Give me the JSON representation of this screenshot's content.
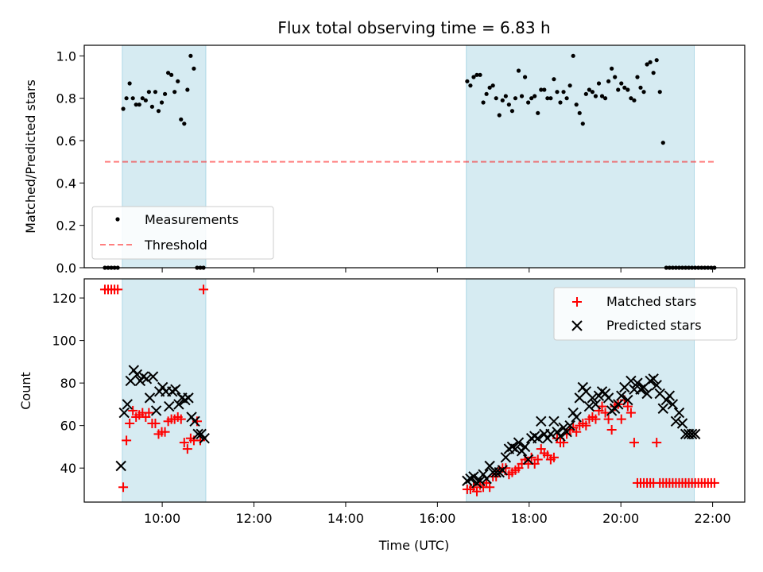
{
  "title": "Flux total observing time = 6.83 h",
  "colors": {
    "span_fill": "#add8e6",
    "measurement": "#000000",
    "threshold": "#ff0000",
    "matched": "#ff0000",
    "predicted": "#000000"
  },
  "chart_data": [
    {
      "type": "scatter",
      "panel": "top",
      "ylabel": "Matched/Predicted stars",
      "xlabel": "",
      "xlim": [
        8.3,
        22.7
      ],
      "ylim": [
        0.0,
        1.05
      ],
      "yticks": [
        0.0,
        0.2,
        0.4,
        0.6,
        0.8,
        1.0
      ],
      "ytick_labels": [
        "0.0",
        "0.2",
        "0.4",
        "0.6",
        "0.8",
        "1.0"
      ],
      "shaded_spans": [
        [
          9.13,
          10.95
        ],
        [
          16.63,
          21.6
        ]
      ],
      "threshold": {
        "y": 0.5,
        "x_range": [
          8.75,
          22.05
        ]
      },
      "legend": {
        "placement": "lower-left",
        "entries": [
          "Measurements",
          "Threshold"
        ]
      },
      "series": [
        {
          "name": "Measurements",
          "x": [
            8.75,
            8.82,
            8.89,
            8.96,
            9.03,
            9.15,
            9.22,
            9.29,
            9.36,
            9.43,
            9.5,
            9.57,
            9.64,
            9.71,
            9.78,
            9.85,
            9.92,
            9.99,
            10.06,
            10.13,
            10.2,
            10.27,
            10.34,
            10.41,
            10.48,
            10.55,
            10.62,
            10.69,
            10.76,
            10.83,
            10.9,
            16.65,
            16.72,
            16.79,
            16.86,
            16.93,
            17.0,
            17.07,
            17.14,
            17.21,
            17.28,
            17.35,
            17.42,
            17.49,
            17.56,
            17.63,
            17.7,
            17.77,
            17.84,
            17.91,
            17.98,
            18.05,
            18.12,
            18.19,
            18.26,
            18.33,
            18.4,
            18.47,
            18.54,
            18.61,
            18.68,
            18.75,
            18.82,
            18.89,
            18.96,
            19.03,
            19.1,
            19.17,
            19.24,
            19.31,
            19.38,
            19.45,
            19.52,
            19.59,
            19.66,
            19.73,
            19.8,
            19.87,
            19.94,
            20.01,
            20.08,
            20.15,
            20.22,
            20.29,
            20.36,
            20.43,
            20.5,
            20.57,
            20.64,
            20.71,
            20.78,
            20.85,
            20.92,
            20.99,
            21.06,
            21.13,
            21.2,
            21.27,
            21.34,
            21.41,
            21.48,
            21.55,
            21.62,
            21.69,
            21.76,
            21.83,
            21.9,
            21.97,
            22.04
          ],
          "y": [
            0.0,
            0.0,
            0.0,
            0.0,
            0.0,
            0.75,
            0.8,
            0.87,
            0.8,
            0.77,
            0.77,
            0.8,
            0.79,
            0.83,
            0.76,
            0.83,
            0.74,
            0.78,
            0.82,
            0.92,
            0.91,
            0.83,
            0.88,
            0.7,
            0.68,
            0.84,
            1.0,
            0.94,
            0.0,
            0.0,
            0.0,
            0.88,
            0.86,
            0.9,
            0.91,
            0.91,
            0.78,
            0.82,
            0.85,
            0.86,
            0.8,
            0.72,
            0.79,
            0.81,
            0.77,
            0.74,
            0.8,
            0.93,
            0.81,
            0.9,
            0.78,
            0.8,
            0.81,
            0.73,
            0.84,
            0.84,
            0.8,
            0.8,
            0.89,
            0.83,
            0.78,
            0.83,
            0.8,
            0.86,
            1.0,
            0.77,
            0.73,
            0.68,
            0.82,
            0.84,
            0.83,
            0.81,
            0.87,
            0.81,
            0.8,
            0.88,
            0.94,
            0.9,
            0.84,
            0.87,
            0.85,
            0.84,
            0.8,
            0.79,
            0.9,
            0.85,
            0.83,
            0.96,
            0.97,
            0.92,
            0.98,
            0.83,
            0.59,
            0.0,
            0.0,
            0.0,
            0.0,
            0.0,
            0.0,
            0.0,
            0.0,
            0.0,
            0.0,
            0.0,
            0.0,
            0.0,
            0.0,
            0.0,
            0.0
          ]
        },
        {
          "name": "Threshold",
          "x": [
            8.75,
            22.05
          ],
          "y": [
            0.5,
            0.5
          ]
        }
      ]
    },
    {
      "type": "scatter",
      "panel": "bottom",
      "ylabel": "Count",
      "xlabel": "Time (UTC)",
      "xlim": [
        8.3,
        22.7
      ],
      "ylim": [
        24,
        129
      ],
      "yticks": [
        40,
        60,
        80,
        100,
        120
      ],
      "ytick_labels": [
        "40",
        "60",
        "80",
        "100",
        "120"
      ],
      "xticks": [
        10,
        12,
        14,
        16,
        18,
        20,
        22
      ],
      "xtick_labels": [
        "10:00",
        "12:00",
        "14:00",
        "16:00",
        "18:00",
        "20:00",
        "22:00"
      ],
      "shaded_spans": [
        [
          9.13,
          10.95
        ],
        [
          16.63,
          21.6
        ]
      ],
      "legend": {
        "placement": "top-right",
        "entries": [
          "Matched stars",
          "Predicted stars"
        ]
      },
      "series": [
        {
          "name": "Matched stars",
          "x": [
            8.75,
            8.82,
            8.89,
            8.96,
            9.03,
            9.15,
            9.22,
            9.29,
            9.36,
            9.43,
            9.5,
            9.57,
            9.64,
            9.71,
            9.78,
            9.85,
            9.92,
            9.99,
            10.06,
            10.13,
            10.2,
            10.27,
            10.34,
            10.41,
            10.48,
            10.55,
            10.62,
            10.69,
            10.76,
            10.83,
            10.9,
            16.65,
            16.72,
            16.79,
            16.86,
            16.93,
            17.0,
            17.07,
            17.14,
            17.21,
            17.28,
            17.35,
            17.42,
            17.49,
            17.56,
            17.63,
            17.7,
            17.77,
            17.84,
            17.91,
            17.98,
            18.05,
            18.12,
            18.19,
            18.26,
            18.33,
            18.4,
            18.47,
            18.54,
            18.61,
            18.68,
            18.75,
            18.82,
            18.89,
            18.96,
            19.03,
            19.1,
            19.17,
            19.24,
            19.31,
            19.38,
            19.45,
            19.52,
            19.59,
            19.66,
            19.73,
            19.8,
            19.87,
            19.94,
            20.01,
            20.08,
            20.15,
            20.22,
            20.29,
            20.36,
            20.43,
            20.5,
            20.57,
            20.64,
            20.71,
            20.78,
            20.85,
            20.92,
            20.99,
            21.06,
            21.13,
            21.2,
            21.27,
            21.34,
            21.41,
            21.48,
            21.55,
            21.62,
            21.69,
            21.76,
            21.83,
            21.9,
            21.97,
            22.04
          ],
          "y": [
            124,
            124,
            124,
            124,
            124,
            31,
            53,
            61,
            67,
            64,
            65,
            66,
            64,
            66,
            61,
            61,
            56,
            57,
            57,
            62,
            63,
            63,
            64,
            63,
            52,
            49,
            54,
            53,
            62,
            53,
            124,
            30,
            30,
            31,
            29,
            32,
            31,
            33,
            31,
            36,
            36,
            39,
            40,
            40,
            37,
            38,
            39,
            40,
            42,
            44,
            42,
            45,
            42,
            44,
            49,
            47,
            46,
            44,
            45,
            54,
            52,
            52,
            56,
            58,
            59,
            57,
            60,
            61,
            60,
            63,
            64,
            63,
            67,
            69,
            66,
            63,
            58,
            69,
            70,
            63,
            72,
            69,
            66,
            52,
            33,
            33,
            33,
            33,
            33,
            33,
            52,
            33,
            33,
            33,
            33,
            33,
            33,
            33,
            33,
            33,
            33,
            33,
            33,
            33,
            33,
            33,
            33,
            33,
            33
          ],
          "note_unused": ""
        },
        {
          "name": "Predicted stars",
          "x": [
            9.1,
            9.17,
            9.24,
            9.31,
            9.38,
            9.45,
            9.52,
            9.59,
            9.66,
            9.73,
            9.8,
            9.87,
            9.94,
            10.01,
            10.08,
            10.15,
            10.22,
            10.29,
            10.36,
            10.43,
            10.5,
            10.57,
            10.64,
            10.71,
            10.78,
            10.85,
            10.92,
            16.65,
            16.72,
            16.79,
            16.86,
            16.93,
            17.0,
            17.07,
            17.14,
            17.21,
            17.28,
            17.35,
            17.42,
            17.49,
            17.56,
            17.63,
            17.7,
            17.77,
            17.84,
            17.91,
            17.98,
            18.05,
            18.12,
            18.19,
            18.26,
            18.33,
            18.4,
            18.47,
            18.54,
            18.61,
            18.68,
            18.75,
            18.82,
            18.89,
            18.96,
            19.03,
            19.1,
            19.17,
            19.24,
            19.31,
            19.38,
            19.45,
            19.52,
            19.59,
            19.66,
            19.73,
            19.8,
            19.87,
            19.94,
            20.01,
            20.08,
            20.15,
            20.22,
            20.29,
            20.36,
            20.43,
            20.5,
            20.57,
            20.64,
            20.71,
            20.78,
            20.85,
            20.92,
            20.99,
            21.06,
            21.13,
            21.2,
            21.27,
            21.34,
            21.41,
            21.48,
            21.55,
            21.62
          ],
          "y": [
            41,
            66,
            70,
            81,
            86,
            84,
            81,
            83,
            82,
            73,
            83,
            67,
            76,
            78,
            76,
            69,
            76,
            77,
            70,
            73,
            72,
            73,
            64,
            62,
            56,
            56,
            54,
            34,
            35,
            36,
            33,
            34,
            37,
            35,
            41,
            38,
            38,
            38,
            39,
            45,
            49,
            50,
            49,
            52,
            48,
            50,
            44,
            54,
            55,
            54,
            62,
            56,
            54,
            56,
            62,
            57,
            55,
            59,
            57,
            60,
            66,
            64,
            73,
            78,
            76,
            69,
            73,
            70,
            74,
            76,
            75,
            73,
            67,
            68,
            70,
            74,
            78,
            72,
            81,
            77,
            80,
            77,
            78,
            75,
            81,
            82,
            79,
            75,
            68,
            72,
            74,
            70,
            62,
            66,
            61,
            56,
            56,
            56,
            56
          ],
          "note_unused": ""
        }
      ]
    }
  ]
}
